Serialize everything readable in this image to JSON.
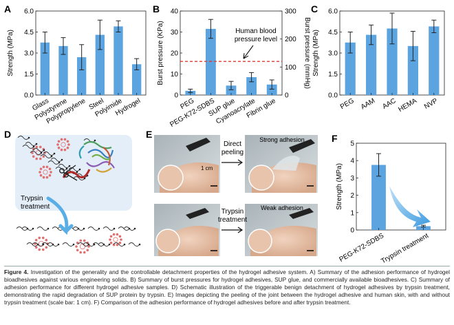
{
  "colors": {
    "bar": "#5ba4e0",
    "dashed": "#e03a2f",
    "panel_d_bg": "#e4eef8",
    "arrow": "#5aaee6"
  },
  "panels": {
    "A": "A",
    "B": "B",
    "C": "C",
    "D": "D",
    "E": "E",
    "F": "F"
  },
  "chart_data": [
    {
      "panel": "A",
      "type": "bar",
      "categories": [
        "Glass",
        "Polystyrene",
        "Polypropylene",
        "Steel",
        "Polyimide",
        "Hydrogel"
      ],
      "values": [
        3.75,
        3.5,
        2.7,
        4.3,
        4.9,
        2.2
      ],
      "errors": [
        0.75,
        0.6,
        0.9,
        1.05,
        0.4,
        0.4
      ],
      "ylabel": "Strength (MPa)",
      "ylim": [
        0,
        6.0
      ],
      "yticks": [
        "0.0",
        "1.5",
        "3.0",
        "4.5",
        "6.0"
      ]
    },
    {
      "panel": "B",
      "type": "bar",
      "categories": [
        "PEG",
        "PEG-K72-SDBS",
        "SUP glue",
        "Cyanoacrylate",
        "Fibrin glue"
      ],
      "values": [
        2,
        31.5,
        4.5,
        8.5,
        5
      ],
      "errors": [
        0.8,
        4.5,
        2,
        2.2,
        2.2
      ],
      "ylabel": "Burst pressure (KPa)",
      "ylim": [
        0,
        40
      ],
      "yticks": [
        "0",
        "10",
        "20",
        "30",
        "40"
      ],
      "y2label": "Burst pressure (mmHg)",
      "y2lim": [
        0,
        300
      ],
      "y2ticks": [
        "0",
        "100",
        "200",
        "300"
      ],
      "reference_line": {
        "value_mmHg": 120,
        "label_line1": "Human blood",
        "label_line2": "pressure level"
      }
    },
    {
      "panel": "C",
      "type": "bar",
      "categories": [
        "PEG",
        "AAM",
        "AAC",
        "HEMA",
        "NVP"
      ],
      "values": [
        3.75,
        4.3,
        4.75,
        3.5,
        4.9
      ],
      "errors": [
        0.75,
        0.7,
        1.1,
        1.05,
        0.45
      ],
      "ylabel": "Strength (MPa)",
      "ylim": [
        0,
        6.0
      ],
      "yticks": [
        "0.0",
        "1.5",
        "3.0",
        "4.5",
        "6.0"
      ]
    },
    {
      "panel": "F",
      "type": "bar",
      "categories": [
        "PEG-K72-SDBS",
        "Trypsin treatment"
      ],
      "values": [
        3.75,
        0.22
      ],
      "errors": [
        0.65,
        0.05
      ],
      "ylabel": "Strength (MPa)",
      "ylim": [
        0,
        5
      ],
      "yticks": [
        "0",
        "1",
        "2",
        "3",
        "4",
        "5"
      ]
    }
  ],
  "panel_d": {
    "label_line1": "Trypsin",
    "label_line2": "treatment"
  },
  "panel_e": {
    "top_arrow_line1": "Direct",
    "top_arrow_line2": "peeling",
    "top_result": "Strong adhesion",
    "bottom_arrow_line1": "Trypsin",
    "bottom_arrow_line2": "treatment",
    "bottom_result": "Weak adhesion",
    "scale_label": "1 cm"
  },
  "caption": {
    "label": "Figure 4.",
    "text": "Investigation of the generality and the controllable detachment properties of the hydrogel adhesive system. A) Summary of the adhesion performance of hydrogel bioadhesives against various engineering solids. B) Summary of burst pressures for hydrogel adhesives, SUP glue, and commercially available bioadhesives. C) Summary of adhesion performance for different hydrogel adhesive samples. D) Schematic illustration of the triggerable benign detachment of hydrogel adhesives by trypsin treatment, demonstrating the rapid degradation of SUP protein by trypsin. E) Images depicting the peeling of the joint between the hydrogel adhesive and human skin, with and without trypsin treatment (scale bar: 1 cm). F) Comparison of the adhesion performance of hydrogel adhesives before and after trypsin treatment."
  }
}
